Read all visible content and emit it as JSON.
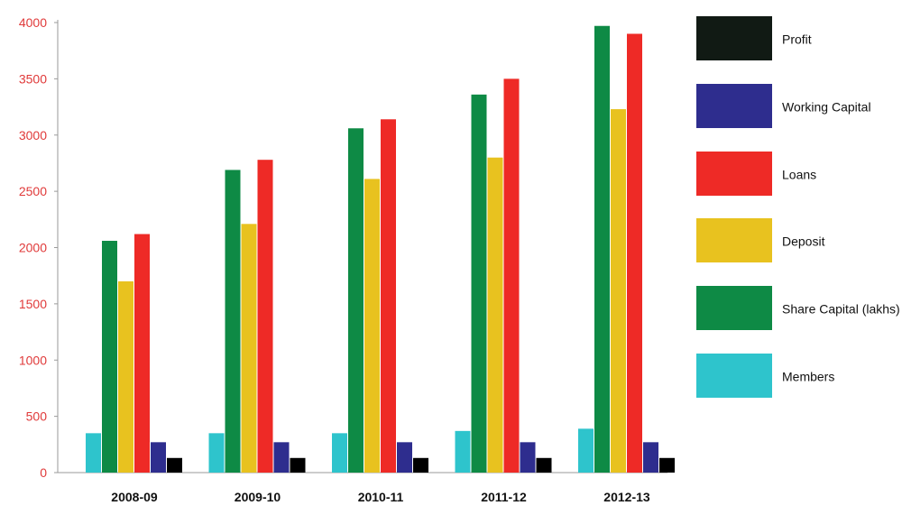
{
  "chart_data": {
    "type": "bar",
    "categories": [
      "2008-09",
      "2009-10",
      "2010-11",
      "2011-12",
      "2012-13"
    ],
    "series": [
      {
        "name": "Members",
        "color": "#2ec4cc",
        "values": [
          350,
          350,
          350,
          370,
          390
        ]
      },
      {
        "name": "Share Capital (lakhs)",
        "color": "#0e8a45",
        "values": [
          2060,
          2690,
          3060,
          3360,
          3970
        ]
      },
      {
        "name": "Deposit",
        "color": "#e8c21f",
        "values": [
          1700,
          2210,
          2610,
          2800,
          3230
        ]
      },
      {
        "name": "Loans",
        "color": "#ee2a26",
        "values": [
          2120,
          2780,
          3140,
          3500,
          3900
        ]
      },
      {
        "name": "Working Capital",
        "color": "#2e2d8e",
        "values": [
          270,
          270,
          270,
          270,
          270
        ]
      },
      {
        "name": "Profit",
        "color": "#000000",
        "values": [
          130,
          130,
          130,
          130,
          130
        ]
      }
    ],
    "ylim": [
      0,
      4000
    ],
    "yticks": [
      0,
      500,
      1000,
      1500,
      2000,
      2500,
      3000,
      3500,
      4000
    ],
    "legend": {
      "placement": "right",
      "order": [
        "Profit",
        "Working Capital",
        "Loans",
        "Deposit",
        "Share Capital (lakhs)",
        "Members"
      ],
      "swatch_colors": {
        "Profit": "#111a14",
        "Working Capital": "#2e2d8e",
        "Loans": "#ee2a26",
        "Deposit": "#e8c21f",
        "Share Capital (lakhs)": "#0e8a45",
        "Members": "#2ec4cc"
      }
    },
    "grid": false
  }
}
